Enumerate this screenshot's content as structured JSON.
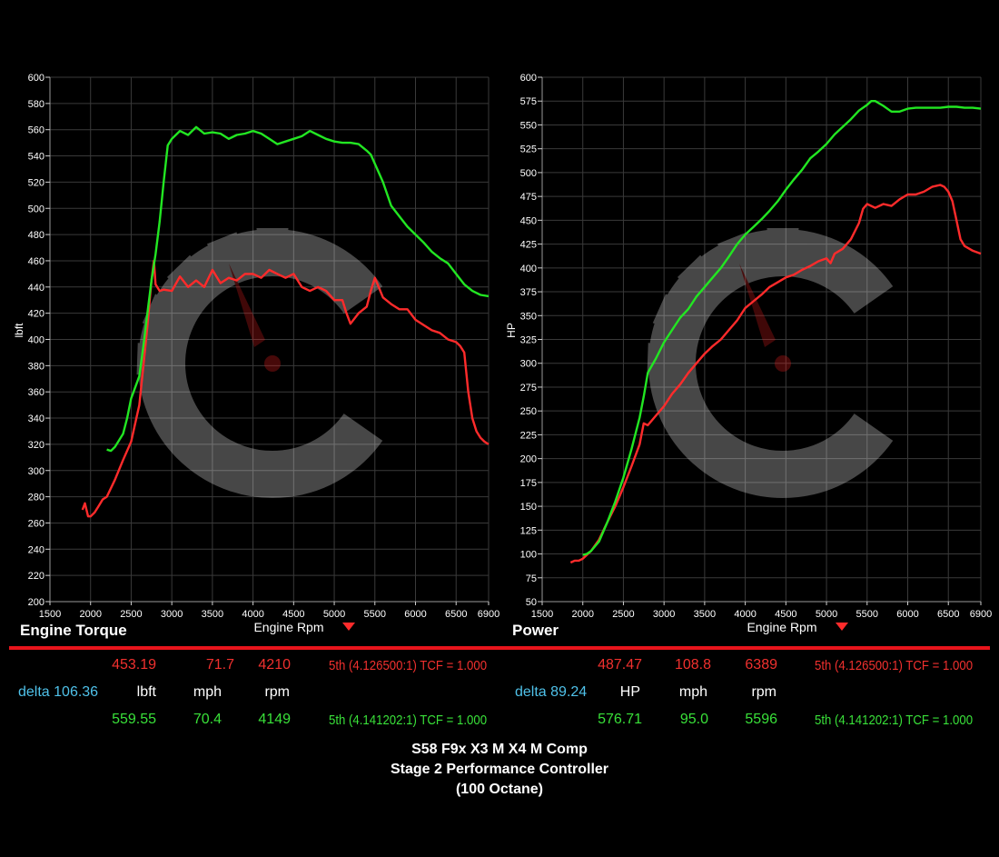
{
  "colors": {
    "before": "#ff2b2b",
    "after": "#22e622",
    "delta": "#4fc1e9",
    "rule": "#e8141b"
  },
  "chart_data": [
    {
      "type": "line",
      "title": "Engine Torque",
      "xlabel": "Engine Rpm",
      "ylabel": "lbft",
      "xlim": [
        1500,
        6900
      ],
      "ylim": [
        200,
        600
      ],
      "xticks": [
        1500,
        2000,
        2500,
        3000,
        3500,
        4000,
        4500,
        5000,
        5500,
        6000,
        6500,
        6900
      ],
      "yticks": [
        200,
        220,
        240,
        260,
        280,
        300,
        320,
        340,
        360,
        380,
        400,
        420,
        440,
        460,
        480,
        500,
        520,
        540,
        560,
        580,
        600
      ],
      "grid": true,
      "series": [
        {
          "color": "#ff2b2b",
          "x": [
            1900,
            1930,
            1970,
            2000,
            2050,
            2100,
            2150,
            2200,
            2300,
            2400,
            2500,
            2600,
            2650,
            2700,
            2750,
            2780,
            2800,
            2850,
            2900,
            3000,
            3100,
            3200,
            3300,
            3400,
            3500,
            3600,
            3700,
            3800,
            3900,
            4000,
            4100,
            4200,
            4300,
            4400,
            4500,
            4600,
            4700,
            4800,
            4900,
            5000,
            5100,
            5150,
            5200,
            5300,
            5400,
            5450,
            5500,
            5600,
            5700,
            5800,
            5900,
            6000,
            6100,
            6200,
            6300,
            6400,
            6500,
            6550,
            6600,
            6650,
            6700,
            6750,
            6800,
            6850,
            6900
          ],
          "y": [
            270,
            275,
            265,
            265,
            268,
            273,
            278,
            280,
            293,
            308,
            322,
            350,
            380,
            410,
            445,
            460,
            442,
            437,
            438,
            437,
            448,
            440,
            445,
            440,
            453,
            443,
            447,
            445,
            450,
            450,
            447,
            453,
            450,
            447,
            450,
            440,
            437,
            440,
            437,
            430,
            430,
            420,
            412,
            420,
            425,
            437,
            447,
            432,
            427,
            423,
            423,
            415,
            411,
            407,
            405,
            400,
            398,
            395,
            390,
            360,
            340,
            330,
            325,
            322,
            320
          ]
        },
        {
          "color": "#22e622",
          "x": [
            2200,
            2250,
            2300,
            2400,
            2450,
            2500,
            2600,
            2650,
            2700,
            2750,
            2800,
            2850,
            2900,
            2950,
            3000,
            3050,
            3100,
            3200,
            3300,
            3400,
            3500,
            3600,
            3700,
            3800,
            3900,
            4000,
            4100,
            4200,
            4300,
            4400,
            4500,
            4600,
            4700,
            4800,
            4900,
            5000,
            5100,
            5200,
            5300,
            5400,
            5450,
            5500,
            5600,
            5700,
            5800,
            5900,
            6000,
            6100,
            6200,
            6300,
            6400,
            6500,
            6600,
            6700,
            6800,
            6900
          ],
          "y": [
            316,
            315,
            318,
            328,
            340,
            355,
            372,
            395,
            420,
            445,
            465,
            490,
            520,
            548,
            553,
            556,
            559,
            556,
            562,
            557,
            558,
            557,
            553,
            556,
            557,
            559,
            557,
            553,
            549,
            551,
            553,
            555,
            559,
            556,
            553,
            551,
            550,
            550,
            549,
            544,
            541,
            534,
            520,
            502,
            494,
            486,
            480,
            474,
            467,
            462,
            458,
            450,
            442,
            437,
            434,
            433
          ]
        }
      ]
    },
    {
      "type": "line",
      "title": "Power",
      "xlabel": "Engine Rpm",
      "ylabel": "HP",
      "xlim": [
        1500,
        6900
      ],
      "ylim": [
        50,
        600
      ],
      "xticks": [
        1500,
        2000,
        2500,
        3000,
        3500,
        4000,
        4500,
        5000,
        5500,
        6000,
        6500,
        6900
      ],
      "yticks": [
        50,
        75,
        100,
        125,
        150,
        175,
        200,
        225,
        250,
        275,
        300,
        325,
        350,
        375,
        400,
        425,
        450,
        475,
        500,
        525,
        550,
        575,
        600
      ],
      "grid": true,
      "series": [
        {
          "color": "#ff2b2b",
          "x": [
            1850,
            1900,
            1950,
            2000,
            2100,
            2200,
            2300,
            2400,
            2500,
            2600,
            2700,
            2750,
            2800,
            2900,
            3000,
            3100,
            3200,
            3300,
            3400,
            3500,
            3600,
            3700,
            3800,
            3900,
            4000,
            4100,
            4200,
            4300,
            4400,
            4500,
            4600,
            4700,
            4800,
            4900,
            5000,
            5050,
            5100,
            5200,
            5300,
            5400,
            5450,
            5500,
            5600,
            5700,
            5800,
            5900,
            6000,
            6100,
            6200,
            6300,
            6400,
            6450,
            6500,
            6550,
            6600,
            6650,
            6700,
            6800,
            6900
          ],
          "y": [
            91,
            93,
            93,
            95,
            103,
            115,
            133,
            150,
            170,
            192,
            215,
            237,
            235,
            245,
            255,
            268,
            278,
            290,
            300,
            310,
            318,
            325,
            335,
            345,
            358,
            365,
            372,
            380,
            385,
            390,
            393,
            398,
            402,
            407,
            410,
            405,
            415,
            420,
            430,
            447,
            462,
            467,
            463,
            467,
            465,
            472,
            477,
            477,
            480,
            485,
            487,
            485,
            480,
            470,
            450,
            430,
            423,
            418,
            415
          ]
        },
        {
          "color": "#22e622",
          "x": [
            2000,
            2050,
            2100,
            2200,
            2300,
            2400,
            2500,
            2600,
            2700,
            2750,
            2800,
            2900,
            3000,
            3100,
            3200,
            3300,
            3400,
            3500,
            3600,
            3700,
            3800,
            3900,
            4000,
            4100,
            4200,
            4300,
            4400,
            4500,
            4600,
            4700,
            4800,
            4900,
            5000,
            5100,
            5200,
            5300,
            5400,
            5500,
            5550,
            5600,
            5700,
            5800,
            5900,
            6000,
            6100,
            6200,
            6300,
            6400,
            6500,
            6600,
            6700,
            6800,
            6900
          ],
          "y": [
            99,
            100,
            103,
            113,
            133,
            155,
            180,
            210,
            243,
            265,
            290,
            305,
            322,
            335,
            348,
            357,
            370,
            380,
            390,
            400,
            412,
            425,
            435,
            443,
            451,
            460,
            470,
            482,
            493,
            503,
            515,
            522,
            530,
            540,
            548,
            556,
            565,
            571,
            575,
            575,
            570,
            564,
            564,
            567,
            568,
            568,
            568,
            568,
            569,
            569,
            568,
            568,
            567
          ]
        }
      ]
    }
  ],
  "readouts": {
    "torque": {
      "before": {
        "value": "453.19",
        "mph": "71.7",
        "rpm": "4210",
        "gear": "5th (4.126500:1) TCF = 1.000"
      },
      "units": {
        "delta": "delta 106.36",
        "value": "lbft",
        "mph": "mph",
        "rpm": "rpm"
      },
      "after": {
        "value": "559.55",
        "mph": "70.4",
        "rpm": "4149",
        "gear": "5th (4.141202:1) TCF = 1.000"
      }
    },
    "power": {
      "before": {
        "value": "487.47",
        "mph": "108.8",
        "rpm": "6389",
        "gear": "5th (4.126500:1) TCF = 1.000"
      },
      "units": {
        "delta": "delta 89.24",
        "value": "HP",
        "mph": "mph",
        "rpm": "rpm"
      },
      "after": {
        "value": "576.71",
        "mph": "95.0",
        "rpm": "5596",
        "gear": "5th (4.141202:1) TCF = 1.000"
      }
    }
  },
  "caption": {
    "line1": "S58 F9x X3 M X4 M Comp",
    "line2": "Stage 2 Performance Controller",
    "line3": "(100 Octane)"
  }
}
